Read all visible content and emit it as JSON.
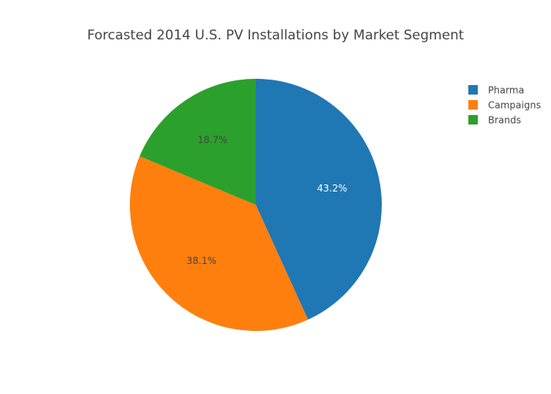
{
  "chart_data": {
    "type": "pie",
    "title": "Forcasted 2014 U.S. PV Installations by Market Segment",
    "slices": [
      {
        "label": "Pharma",
        "value": 43.2,
        "display": "43.2%",
        "color": "#1f77b4",
        "text_color": "#ffffff"
      },
      {
        "label": "Campaigns",
        "value": 38.1,
        "display": "38.1%",
        "color": "#ff7f0e",
        "text_color": "#444444"
      },
      {
        "label": "Brands",
        "value": 18.7,
        "display": "18.7%",
        "color": "#2ca02c",
        "text_color": "#444444"
      }
    ],
    "legend_position": "top-right",
    "direction": "clockwise",
    "start_angle": "12 o'clock"
  }
}
